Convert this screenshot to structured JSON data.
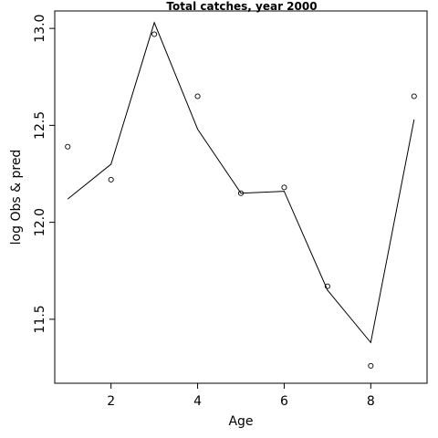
{
  "chart_data": {
    "type": "line",
    "title": "Total catches, year 2000",
    "xlabel": "Age",
    "ylabel": "log Obs & pred",
    "xlim": [
      0.7,
      9.3
    ],
    "ylim": [
      11.17,
      13.09
    ],
    "x_ticks": [
      2,
      4,
      6,
      8
    ],
    "x_tick_labels": [
      "2",
      "4",
      "6",
      "8"
    ],
    "y_ticks": [
      11.5,
      12.0,
      12.5,
      13.0
    ],
    "y_tick_labels": [
      "11.5",
      "12.0",
      "12.5",
      "13.0"
    ],
    "grid": false,
    "legend": "none",
    "series": [
      {
        "kind": "points",
        "marker": "open-circle",
        "x": [
          1,
          2,
          3,
          4,
          5,
          6,
          7,
          8,
          9
        ],
        "y": [
          12.39,
          12.22,
          12.97,
          12.65,
          12.15,
          12.18,
          11.67,
          11.26,
          12.65
        ]
      },
      {
        "kind": "line",
        "x": [
          1,
          2,
          3,
          4,
          5,
          6,
          7,
          8,
          9
        ],
        "y": [
          12.12,
          12.3,
          13.03,
          12.48,
          12.15,
          12.16,
          11.65,
          11.38,
          12.53
        ]
      }
    ]
  }
}
